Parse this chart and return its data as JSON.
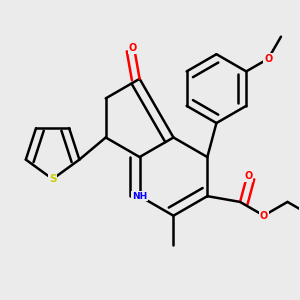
{
  "background_color": "#ebebeb",
  "bond_color": "#000000",
  "bond_width": 1.8,
  "atom_colors": {
    "O": "#ff0000",
    "N": "#0000ff",
    "S": "#cccc00",
    "C": "#000000",
    "H": "#000000"
  },
  "figsize": [
    3.0,
    3.0
  ],
  "dpi": 100
}
